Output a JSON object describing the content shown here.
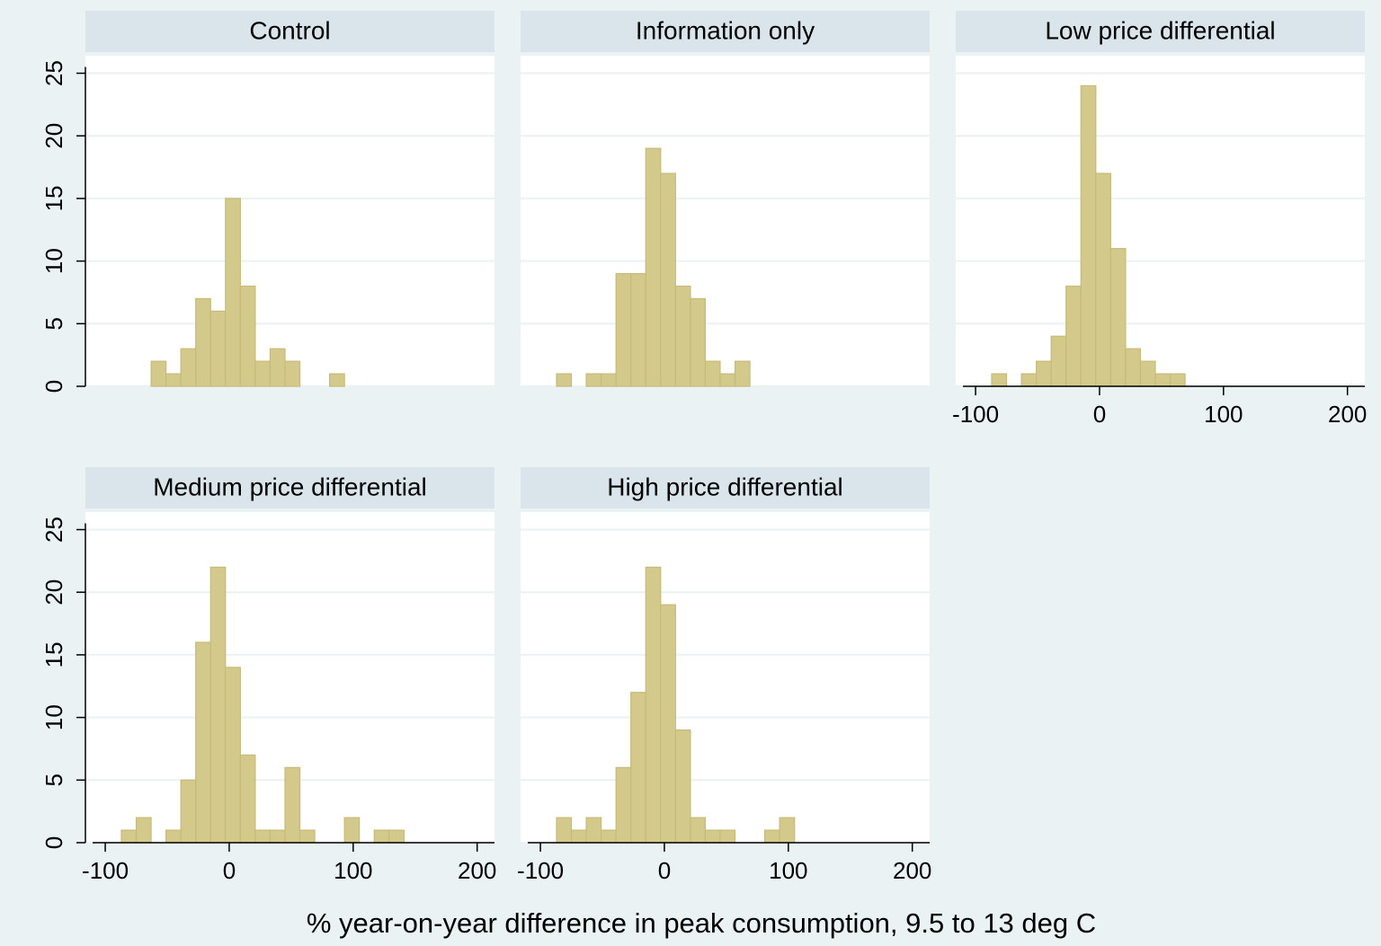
{
  "figure": {
    "xlabel": "% year-on-year difference in peak consumption, 9.5 to 13 deg C"
  },
  "chart_data": [
    {
      "type": "histogram",
      "title": "Control",
      "color": "#d3c98b",
      "bins": [
        -87,
        -75,
        -63,
        -51,
        -39,
        -27,
        -15,
        -3,
        9,
        21,
        33,
        45,
        57,
        69,
        81,
        93,
        105,
        117,
        129,
        141
      ],
      "values": [
        0,
        0,
        2,
        1,
        3,
        7,
        6,
        15,
        8,
        2,
        3,
        2,
        0,
        0,
        1,
        0,
        0,
        0,
        0
      ],
      "xlim": [
        -116,
        214
      ],
      "ylim": [
        0,
        26.4
      ],
      "yticks": [
        0,
        5,
        10,
        15,
        20,
        25
      ]
    },
    {
      "type": "histogram",
      "title": "Information only",
      "color": "#d3c98b",
      "bins": [
        -87,
        -75,
        -63,
        -51,
        -39,
        -27,
        -15,
        -3,
        9,
        21,
        33,
        45,
        57,
        69,
        81,
        93,
        105,
        117,
        129,
        141
      ],
      "values": [
        1,
        0,
        1,
        1,
        9,
        9,
        19,
        17,
        8,
        7,
        2,
        1,
        2,
        0,
        0,
        0,
        0,
        0,
        0
      ],
      "xlim": [
        -116,
        214
      ],
      "ylim": [
        0,
        26.4
      ],
      "yticks": [
        0,
        5,
        10,
        15,
        20,
        25
      ]
    },
    {
      "type": "histogram",
      "title": "Low price differential",
      "color": "#d3c98b",
      "bins": [
        -87,
        -75,
        -63,
        -51,
        -39,
        -27,
        -15,
        -3,
        9,
        21,
        33,
        45,
        57,
        69,
        81,
        93,
        105,
        117,
        129,
        141
      ],
      "values": [
        1,
        0,
        1,
        2,
        4,
        8,
        24,
        17,
        11,
        3,
        2,
        1,
        1,
        0,
        0,
        0,
        0,
        0,
        0
      ],
      "xlim": [
        -116,
        214
      ],
      "xticks": [
        -100,
        0,
        100,
        200
      ],
      "ylim": [
        0,
        26.4
      ],
      "yticks": [
        0,
        5,
        10,
        15,
        20,
        25
      ]
    },
    {
      "type": "histogram",
      "title": "Medium price differential",
      "color": "#d3c98b",
      "bins": [
        -87,
        -75,
        -63,
        -51,
        -39,
        -27,
        -15,
        -3,
        9,
        21,
        33,
        45,
        57,
        69,
        81,
        93,
        105,
        117,
        129,
        141
      ],
      "values": [
        1,
        2,
        0,
        1,
        5,
        16,
        22,
        14,
        7,
        1,
        1,
        6,
        1,
        0,
        0,
        2,
        0,
        1,
        1
      ],
      "xlim": [
        -116,
        214
      ],
      "xticks": [
        -100,
        0,
        100,
        200
      ],
      "ylim": [
        0,
        26.4
      ],
      "yticks": [
        0,
        5,
        10,
        15,
        20,
        25
      ]
    },
    {
      "type": "histogram",
      "title": "High price differential",
      "color": "#d3c98b",
      "bins": [
        -87,
        -75,
        -63,
        -51,
        -39,
        -27,
        -15,
        -3,
        9,
        21,
        33,
        45,
        57,
        69,
        81,
        93,
        105,
        117,
        129,
        141
      ],
      "values": [
        2,
        1,
        2,
        1,
        6,
        12,
        22,
        19,
        9,
        2,
        1,
        1,
        0,
        0,
        1,
        2,
        0,
        0,
        0
      ],
      "xlim": [
        -116,
        214
      ],
      "xticks": [
        -100,
        0,
        100,
        200
      ],
      "ylim": [
        0,
        26.4
      ],
      "yticks": [
        0,
        5,
        10,
        15,
        20,
        25
      ]
    }
  ]
}
